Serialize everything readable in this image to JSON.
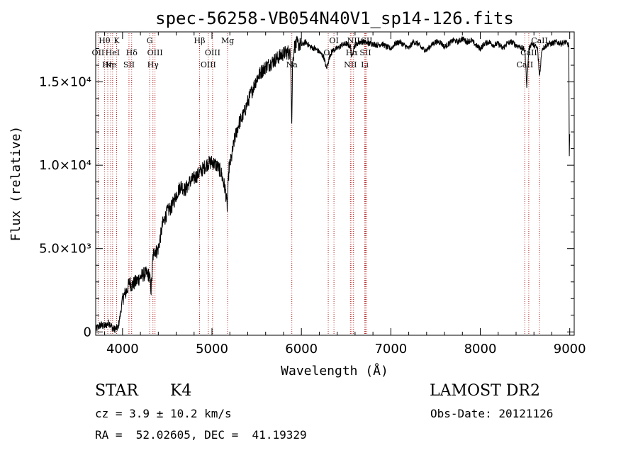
{
  "chart_data": {
    "type": "line",
    "title": "spec-56258-VB054N40V1_sp14-126.fits",
    "xlabel": "Wavelength (Å)",
    "ylabel": "Flux (relative)",
    "xlim": [
      3700,
      9050
    ],
    "ylim": [
      -200,
      18000
    ],
    "x_ticks": [
      {
        "value": 4000,
        "label": "4000"
      },
      {
        "value": 5000,
        "label": "5000"
      },
      {
        "value": 6000,
        "label": "6000"
      },
      {
        "value": 7000,
        "label": "7000"
      },
      {
        "value": 8000,
        "label": "8000"
      },
      {
        "value": 9000,
        "label": "9000"
      }
    ],
    "y_ticks": [
      {
        "value": 0,
        "label": "0"
      },
      {
        "value": 5000,
        "label": "5.0×10³"
      },
      {
        "value": 10000,
        "label": "1.0×10⁴"
      },
      {
        "value": 15000,
        "label": "1.5×10⁴"
      }
    ],
    "grid": false,
    "series": [
      {
        "line_color": "#000000",
        "x": [
          3700,
          3750,
          3800,
          3850,
          3900,
          3950,
          3980,
          4000,
          4050,
          4080,
          4100,
          4150,
          4200,
          4250,
          4300,
          4320,
          4340,
          4360,
          4380,
          4400,
          4450,
          4500,
          4550,
          4600,
          4650,
          4700,
          4750,
          4800,
          4850,
          4900,
          4950,
          5000,
          5050,
          5100,
          5150,
          5170,
          5190,
          5220,
          5250,
          5300,
          5350,
          5400,
          5450,
          5500,
          5550,
          5600,
          5650,
          5700,
          5750,
          5800,
          5850,
          5880,
          5893,
          5900,
          5920,
          5950,
          6000,
          6050,
          6100,
          6150,
          6200,
          6250,
          6280,
          6300,
          6320,
          6350,
          6400,
          6450,
          6500,
          6550,
          6563,
          6580,
          6600,
          6650,
          6700,
          6750,
          6800,
          6850,
          6900,
          6950,
          7000,
          7050,
          7100,
          7150,
          7200,
          7250,
          7300,
          7350,
          7400,
          7450,
          7500,
          7550,
          7600,
          7650,
          7700,
          7750,
          7800,
          7850,
          7900,
          7950,
          8000,
          8050,
          8100,
          8150,
          8200,
          8250,
          8300,
          8350,
          8400,
          8450,
          8498,
          8520,
          8542,
          8570,
          8600,
          8640,
          8662,
          8690,
          8720,
          8760,
          8800,
          8850,
          8900,
          8950,
          8990,
          8995,
          9000
        ],
        "y": [
          150,
          400,
          350,
          550,
          150,
          250,
          1200,
          2000,
          2500,
          3000,
          2800,
          3000,
          3300,
          3500,
          3400,
          2500,
          4500,
          5000,
          4800,
          5000,
          6500,
          7200,
          7500,
          8200,
          8800,
          8500,
          9000,
          9200,
          9500,
          9800,
          10100,
          10200,
          10000,
          9600,
          8500,
          7500,
          9800,
          10500,
          11500,
          12500,
          13000,
          13800,
          14500,
          15200,
          15600,
          15900,
          16100,
          16300,
          16500,
          16700,
          16800,
          16600,
          12300,
          16000,
          17100,
          17300,
          17200,
          17400,
          17100,
          17000,
          16800,
          16500,
          15800,
          16200,
          16600,
          16900,
          17000,
          17200,
          17300,
          17100,
          16400,
          17000,
          17200,
          17400,
          17400,
          17300,
          17300,
          17200,
          17300,
          17100,
          17000,
          17300,
          17400,
          17200,
          17000,
          17400,
          17300,
          17000,
          16900,
          17200,
          17400,
          17400,
          17100,
          17300,
          17500,
          17400,
          17600,
          17400,
          17500,
          17200,
          17000,
          17300,
          17400,
          17200,
          17300,
          17000,
          17300,
          17400,
          17200,
          17100,
          16900,
          14800,
          16900,
          17300,
          17200,
          17000,
          15300,
          17000,
          17100,
          17300,
          17300,
          17400,
          17300,
          17400,
          17200,
          10500,
          11800
        ]
      }
    ],
    "spectral_lines": [
      {
        "wavelength": 3798,
        "label": "Hθ",
        "row": 0
      },
      {
        "wavelength": 3727,
        "label": "OII",
        "row": 1
      },
      {
        "wavelength": 3868,
        "label": "Ne",
        "row": 2
      },
      {
        "wavelength": 3835,
        "label": "Hη",
        "row": 2
      },
      {
        "wavelength": 3889,
        "label": "HeI",
        "row": 1
      },
      {
        "wavelength": 3934,
        "label": "K",
        "row": 0
      },
      {
        "wavelength": 4072,
        "label": "SII",
        "row": 2
      },
      {
        "wavelength": 4102,
        "label": "Hδ",
        "row": 1
      },
      {
        "wavelength": 4304,
        "label": "G",
        "row": 0
      },
      {
        "wavelength": 4340,
        "label": "Hγ",
        "row": 2
      },
      {
        "wavelength": 4363,
        "label": "OIII",
        "row": 1
      },
      {
        "wavelength": 4861,
        "label": "Hβ",
        "row": 0
      },
      {
        "wavelength": 4959,
        "label": "OIII",
        "row": 2
      },
      {
        "wavelength": 5007,
        "label": "OIII",
        "row": 1
      },
      {
        "wavelength": 5175,
        "label": "Mg",
        "row": 0
      },
      {
        "wavelength": 5893,
        "label": "Na",
        "row": 2
      },
      {
        "wavelength": 6300,
        "label": "OI",
        "row": 1
      },
      {
        "wavelength": 6364,
        "label": "OI",
        "row": 0
      },
      {
        "wavelength": 6548,
        "label": "NII",
        "row": 2
      },
      {
        "wavelength": 6563,
        "label": "Hα",
        "row": 1
      },
      {
        "wavelength": 6583,
        "label": "NII",
        "row": 0
      },
      {
        "wavelength": 6708,
        "label": "Li",
        "row": 2
      },
      {
        "wavelength": 6716,
        "label": "SII",
        "row": 1
      },
      {
        "wavelength": 6731,
        "label": "SII",
        "row": 0
      },
      {
        "wavelength": 8498,
        "label": "CaII",
        "row": 2
      },
      {
        "wavelength": 8542,
        "label": "CaII",
        "row": 1
      },
      {
        "wavelength": 8662,
        "label": "CaII",
        "row": 0
      }
    ],
    "spectral_line_color": "#b22222"
  },
  "info": {
    "object_class": "STAR",
    "subclass": "K4",
    "survey": "LAMOST DR2",
    "redshift": "cz = 3.9 ± 10.2 km/s",
    "obs_date": "Obs-Date: 20121126",
    "coords": "RA =  52.02605, DEC =  41.19329"
  }
}
